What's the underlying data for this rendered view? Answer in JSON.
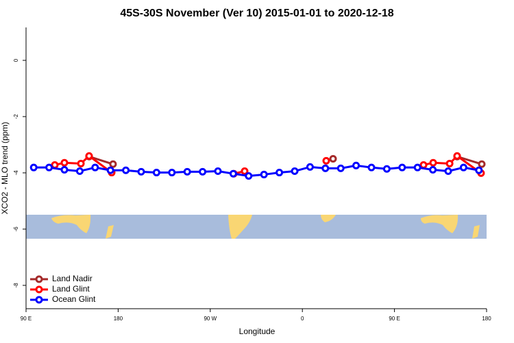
{
  "chart_data": {
    "type": "line",
    "title": "45S-30S November (Ver 10)   2015-01-01 to 2020-12-18",
    "xlabel": "Longitude",
    "ylabel": "XCO2 - MLO trend (ppm)",
    "xlim": [
      90,
      540
    ],
    "xticks": [
      {
        "value": 90,
        "label": "90 E"
      },
      {
        "value": 180,
        "label": "180"
      },
      {
        "value": 270,
        "label": "90 W"
      },
      {
        "value": 360,
        "label": "0"
      },
      {
        "value": 450,
        "label": "90 E"
      },
      {
        "value": 540,
        "label": "180"
      }
    ],
    "ylim": [
      -8.83,
      1.17
    ],
    "yticks": [
      0,
      -2,
      -4,
      -6,
      -8
    ],
    "legend": "bottom-left",
    "series": [
      {
        "name": "Land Nadir",
        "color": "#a52a2a",
        "x": [
          151.6,
          175.0,
          null,
          390.0,
          null,
          511.2,
          535.3
        ],
        "values": [
          -3.42,
          -3.69,
          null,
          -3.5,
          null,
          -3.42,
          -3.69
        ]
      },
      {
        "name": "Land Glint",
        "color": "#ff0000",
        "x": [
          118.1,
          127.5,
          143.6,
          151.6,
          173.7,
          null,
          293.0,
          303.6,
          null,
          383.3,
          null,
          478.4,
          487.8,
          503.9,
          511.2,
          534.6
        ],
        "values": [
          -3.72,
          -3.64,
          -3.67,
          -3.4,
          -3.99,
          null,
          -4.03,
          -3.94,
          null,
          -3.57,
          null,
          -3.72,
          -3.64,
          -3.67,
          -3.4,
          -4.01
        ]
      },
      {
        "name": "Ocean Glint",
        "color": "#0000ff",
        "x": [
          97.5,
          112.5,
          127.5,
          142.5,
          157.5,
          172.5,
          187.5,
          202.5,
          217.5,
          232.5,
          247.5,
          262.5,
          277.5,
          292.5,
          307.5,
          322.5,
          337.5,
          352.5,
          367.5,
          382.5,
          397.5,
          412.5,
          427.5,
          442.5,
          457.5,
          472.5,
          487.5,
          502.5,
          517.5,
          532.5
        ],
        "values": [
          -3.81,
          -3.81,
          -3.89,
          -3.94,
          -3.81,
          -3.91,
          -3.91,
          -3.96,
          -3.99,
          -3.99,
          -3.96,
          -3.96,
          -3.94,
          -4.03,
          -4.11,
          -4.06,
          -3.99,
          -3.94,
          -3.79,
          -3.84,
          -3.84,
          -3.74,
          -3.81,
          -3.86,
          -3.81,
          -3.81,
          -3.89,
          -3.94,
          -3.81,
          -3.91
        ]
      }
    ]
  }
}
